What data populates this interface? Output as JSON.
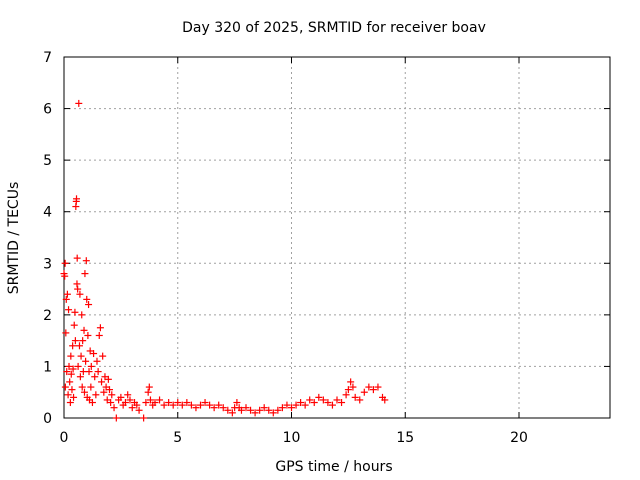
{
  "chart_data": {
    "type": "scatter",
    "title": "Day 320 of 2025, SRMTID for receiver boav",
    "xlabel": "GPS time / hours",
    "ylabel": "SRMTID / TECUs",
    "xlim": [
      0,
      24
    ],
    "ylim": [
      0,
      7
    ],
    "xticks": [
      0,
      5,
      10,
      15,
      20
    ],
    "yticks": [
      0,
      1,
      2,
      3,
      4,
      5,
      6,
      7
    ],
    "grid": true,
    "marker": "+",
    "marker_color": "#ff0000",
    "series": [
      {
        "name": "SRMTID",
        "points": [
          [
            0.0,
            2.8
          ],
          [
            0.03,
            2.75
          ],
          [
            0.05,
            3.0
          ],
          [
            0.06,
            0.6
          ],
          [
            0.08,
            1.65
          ],
          [
            0.1,
            2.3
          ],
          [
            0.12,
            0.9
          ],
          [
            0.15,
            2.4
          ],
          [
            0.18,
            0.45
          ],
          [
            0.2,
            2.1
          ],
          [
            0.22,
            1.0
          ],
          [
            0.25,
            0.7
          ],
          [
            0.28,
            0.3
          ],
          [
            0.3,
            1.2
          ],
          [
            0.32,
            0.85
          ],
          [
            0.35,
            0.55
          ],
          [
            0.38,
            1.4
          ],
          [
            0.4,
            0.95
          ],
          [
            0.42,
            0.4
          ],
          [
            0.45,
            1.8
          ],
          [
            0.48,
            2.05
          ],
          [
            0.5,
            1.5
          ],
          [
            0.52,
            4.1
          ],
          [
            0.54,
            4.2
          ],
          [
            0.55,
            4.25
          ],
          [
            0.57,
            2.6
          ],
          [
            0.58,
            3.1
          ],
          [
            0.6,
            2.5
          ],
          [
            0.62,
            1.0
          ],
          [
            0.65,
            6.1
          ],
          [
            0.68,
            1.4
          ],
          [
            0.7,
            2.4
          ],
          [
            0.72,
            0.8
          ],
          [
            0.75,
            1.2
          ],
          [
            0.78,
            2.0
          ],
          [
            0.8,
            0.6
          ],
          [
            0.82,
            1.5
          ],
          [
            0.85,
            0.9
          ],
          [
            0.88,
            1.7
          ],
          [
            0.9,
            0.5
          ],
          [
            0.92,
            2.8
          ],
          [
            0.95,
            1.1
          ],
          [
            0.98,
            3.05
          ],
          [
            1.0,
            2.3
          ],
          [
            1.02,
            0.4
          ],
          [
            1.05,
            1.6
          ],
          [
            1.08,
            2.2
          ],
          [
            1.1,
            0.9
          ],
          [
            1.12,
            0.35
          ],
          [
            1.15,
            1.3
          ],
          [
            1.18,
            0.6
          ],
          [
            1.2,
            1.0
          ],
          [
            1.25,
            0.3
          ],
          [
            1.3,
            1.25
          ],
          [
            1.35,
            0.8
          ],
          [
            1.4,
            0.45
          ],
          [
            1.45,
            1.1
          ],
          [
            1.5,
            0.9
          ],
          [
            1.55,
            1.6
          ],
          [
            1.6,
            1.75
          ],
          [
            1.65,
            0.7
          ],
          [
            1.7,
            1.2
          ],
          [
            1.75,
            0.5
          ],
          [
            1.8,
            0.8
          ],
          [
            1.85,
            0.6
          ],
          [
            1.9,
            0.35
          ],
          [
            1.95,
            0.75
          ],
          [
            2.0,
            0.55
          ],
          [
            2.05,
            0.3
          ],
          [
            2.1,
            0.45
          ],
          [
            2.2,
            0.2
          ],
          [
            2.3,
            0.0
          ],
          [
            2.4,
            0.35
          ],
          [
            2.5,
            0.4
          ],
          [
            2.6,
            0.25
          ],
          [
            2.7,
            0.3
          ],
          [
            2.8,
            0.45
          ],
          [
            2.9,
            0.35
          ],
          [
            3.0,
            0.2
          ],
          [
            3.1,
            0.3
          ],
          [
            3.2,
            0.25
          ],
          [
            3.3,
            0.15
          ],
          [
            3.5,
            0.0
          ],
          [
            3.6,
            0.3
          ],
          [
            3.7,
            0.5
          ],
          [
            3.75,
            0.6
          ],
          [
            3.8,
            0.35
          ],
          [
            3.9,
            0.25
          ],
          [
            4.0,
            0.3
          ],
          [
            4.2,
            0.35
          ],
          [
            4.4,
            0.25
          ],
          [
            4.6,
            0.3
          ],
          [
            4.8,
            0.25
          ],
          [
            5.0,
            0.3
          ],
          [
            5.2,
            0.25
          ],
          [
            5.4,
            0.3
          ],
          [
            5.6,
            0.25
          ],
          [
            5.8,
            0.2
          ],
          [
            6.0,
            0.25
          ],
          [
            6.2,
            0.3
          ],
          [
            6.4,
            0.25
          ],
          [
            6.6,
            0.2
          ],
          [
            6.8,
            0.25
          ],
          [
            7.0,
            0.2
          ],
          [
            7.2,
            0.15
          ],
          [
            7.4,
            0.1
          ],
          [
            7.5,
            0.2
          ],
          [
            7.6,
            0.3
          ],
          [
            7.7,
            0.2
          ],
          [
            7.8,
            0.15
          ],
          [
            8.0,
            0.2
          ],
          [
            8.2,
            0.15
          ],
          [
            8.4,
            0.1
          ],
          [
            8.6,
            0.15
          ],
          [
            8.8,
            0.2
          ],
          [
            9.0,
            0.15
          ],
          [
            9.2,
            0.1
          ],
          [
            9.4,
            0.15
          ],
          [
            9.6,
            0.2
          ],
          [
            9.8,
            0.25
          ],
          [
            10.0,
            0.2
          ],
          [
            10.2,
            0.25
          ],
          [
            10.4,
            0.3
          ],
          [
            10.6,
            0.25
          ],
          [
            10.8,
            0.35
          ],
          [
            11.0,
            0.3
          ],
          [
            11.2,
            0.4
          ],
          [
            11.4,
            0.35
          ],
          [
            11.6,
            0.3
          ],
          [
            11.8,
            0.25
          ],
          [
            12.0,
            0.35
          ],
          [
            12.2,
            0.3
          ],
          [
            12.4,
            0.45
          ],
          [
            12.5,
            0.55
          ],
          [
            12.6,
            0.7
          ],
          [
            12.7,
            0.6
          ],
          [
            12.8,
            0.4
          ],
          [
            13.0,
            0.35
          ],
          [
            13.2,
            0.5
          ],
          [
            13.4,
            0.6
          ],
          [
            13.6,
            0.55
          ],
          [
            13.8,
            0.6
          ],
          [
            14.0,
            0.4
          ],
          [
            14.1,
            0.35
          ]
        ]
      }
    ]
  }
}
